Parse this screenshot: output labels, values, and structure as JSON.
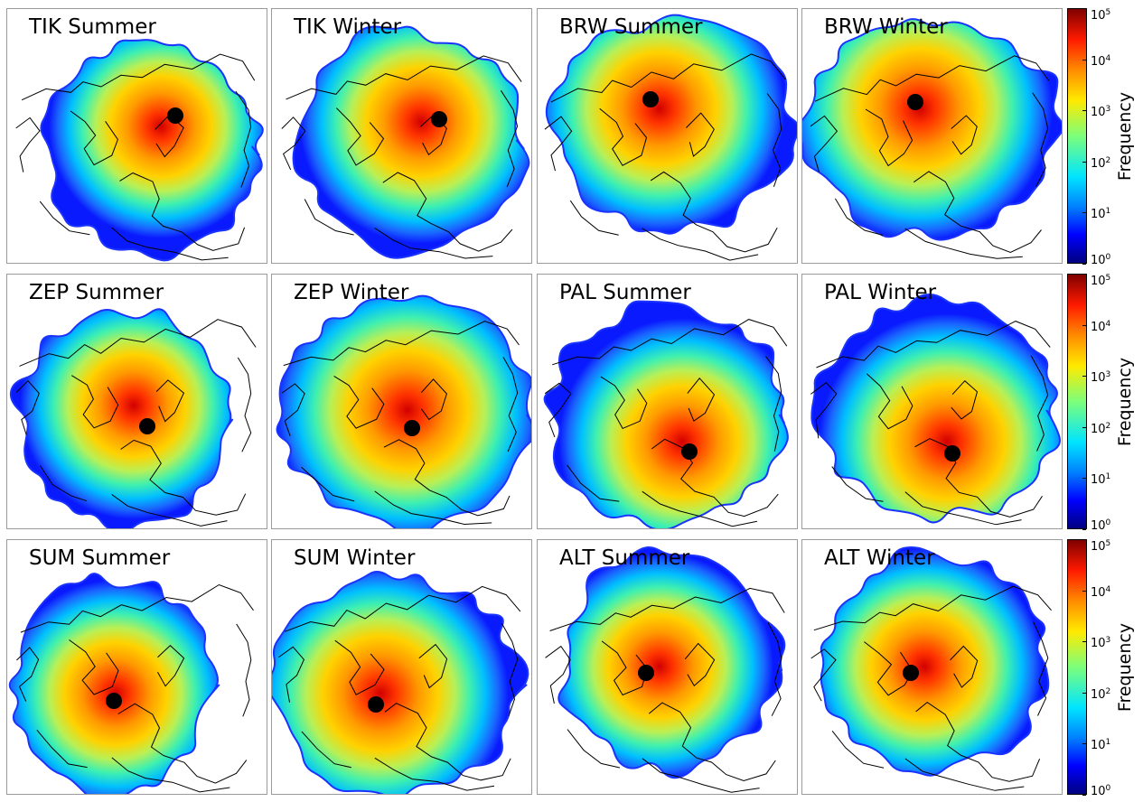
{
  "chart_data": {
    "type": "heatmap",
    "layout": {
      "rows": 3,
      "cols": 4
    },
    "panels": [
      {
        "station": "TIK",
        "season": "Summer",
        "title": "TIK Summer",
        "colorbar_row": 0
      },
      {
        "station": "TIK",
        "season": "Winter",
        "title": "TIK Winter",
        "colorbar_row": 0
      },
      {
        "station": "BRW",
        "season": "Summer",
        "title": "BRW Summer",
        "colorbar_row": 0
      },
      {
        "station": "BRW",
        "season": "Winter",
        "title": "BRW Winter",
        "colorbar_row": 0
      },
      {
        "station": "ZEP",
        "season": "Summer",
        "title": "ZEP Summer",
        "colorbar_row": 1
      },
      {
        "station": "ZEP",
        "season": "Winter",
        "title": "ZEP Winter",
        "colorbar_row": 1
      },
      {
        "station": "PAL",
        "season": "Summer",
        "title": "PAL Summer",
        "colorbar_row": 1
      },
      {
        "station": "PAL",
        "season": "Winter",
        "title": "PAL Winter",
        "colorbar_row": 1
      },
      {
        "station": "SUM",
        "season": "Summer",
        "title": "SUM Summer",
        "colorbar_row": 2
      },
      {
        "station": "SUM",
        "season": "Winter",
        "title": "SUM Winter",
        "colorbar_row": 2
      },
      {
        "station": "ALT",
        "season": "Summer",
        "title": "ALT Summer",
        "colorbar_row": 2
      },
      {
        "station": "ALT",
        "season": "Winter",
        "title": "ALT Winter",
        "colorbar_row": 2
      }
    ],
    "colorbar": {
      "label": "Frequency",
      "scale": "log",
      "range": [
        1,
        100000
      ],
      "colormap": "jet",
      "ticks": [
        {
          "base": "10",
          "exp": "0"
        },
        {
          "base": "10",
          "exp": "1"
        },
        {
          "base": "10",
          "exp": "2"
        },
        {
          "base": "10",
          "exp": "3"
        },
        {
          "base": "10",
          "exp": "4"
        },
        {
          "base": "10",
          "exp": "5"
        }
      ]
    },
    "station_marker": {
      "color": "#000000",
      "shape": "filled-circle"
    },
    "coastline_color": "#000000"
  }
}
